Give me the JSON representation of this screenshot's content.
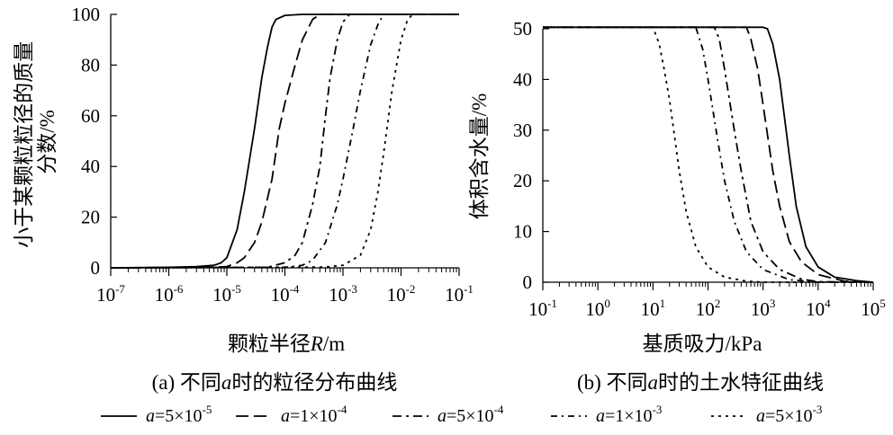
{
  "legend_prefix": "a",
  "legend_times": "×",
  "chart_data": [
    {
      "type": "line",
      "panel": "a",
      "caption_pre": "(a) 不同",
      "caption_var": "a",
      "caption_post": "时的粒径分布曲线",
      "xlabel": "颗粒半径R/m",
      "xlabel_parts": [
        "颗粒半径",
        "R",
        "/m"
      ],
      "ylabel": "小于某颗粒粒径的质量分数/%",
      "ylabel_lines": [
        "小于某颗粒粒径的质量",
        "分数/%"
      ],
      "xscale": "log",
      "xlim": [
        1e-07,
        0.1
      ],
      "xticks": [
        {
          "value": 1e-07,
          "base": "10",
          "exp": "-7"
        },
        {
          "value": 1e-06,
          "base": "10",
          "exp": "-6"
        },
        {
          "value": 1e-05,
          "base": "10",
          "exp": "-5"
        },
        {
          "value": 0.0001,
          "base": "10",
          "exp": "-4"
        },
        {
          "value": 0.001,
          "base": "10",
          "exp": "-3"
        },
        {
          "value": 0.01,
          "base": "10",
          "exp": "-2"
        },
        {
          "value": 0.1,
          "base": "10",
          "exp": "-1"
        }
      ],
      "ylim": [
        0,
        100
      ],
      "yticks": [
        0,
        20,
        40,
        60,
        80,
        100
      ],
      "grid": false,
      "series": [
        {
          "name": "a=5×10⁻⁵",
          "label": {
            "base": "5",
            "exp": "-5"
          },
          "dash": "solid",
          "points": [
            [
              1e-07,
              0
            ],
            [
              1e-06,
              0.2
            ],
            [
              3e-06,
              0.5
            ],
            [
              6e-06,
              1
            ],
            [
              8e-06,
              2
            ],
            [
              1e-05,
              4
            ],
            [
              1.5e-05,
              15
            ],
            [
              2e-05,
              30
            ],
            [
              3e-05,
              55
            ],
            [
              4e-05,
              75
            ],
            [
              5e-05,
              87
            ],
            [
              6e-05,
              95
            ],
            [
              7e-05,
              98
            ],
            [
              0.0001,
              99.6
            ],
            [
              0.0002,
              100
            ],
            [
              0.1,
              100
            ]
          ]
        },
        {
          "name": "a=1×10⁻⁴",
          "label": {
            "base": "1",
            "exp": "-4"
          },
          "dash": "dash",
          "points": [
            [
              1e-07,
              0
            ],
            [
              5e-06,
              0.2
            ],
            [
              1e-05,
              0.5
            ],
            [
              1.5e-05,
              2
            ],
            [
              2e-05,
              4
            ],
            [
              3e-05,
              10
            ],
            [
              4e-05,
              18
            ],
            [
              6e-05,
              35
            ],
            [
              8e-05,
              55
            ],
            [
              0.0001,
              65
            ],
            [
              0.00015,
              80
            ],
            [
              0.0002,
              90
            ],
            [
              0.0003,
              98
            ],
            [
              0.0004,
              100
            ],
            [
              0.1,
              100
            ]
          ]
        },
        {
          "name": "a=5×10⁻⁴",
          "label": {
            "base": "5",
            "exp": "-4"
          },
          "dash": "dashdot",
          "points": [
            [
              1e-07,
              0
            ],
            [
              5e-05,
              0.2
            ],
            [
              0.0001,
              2
            ],
            [
              0.00015,
              5
            ],
            [
              0.0002,
              10
            ],
            [
              0.0003,
              25
            ],
            [
              0.0004,
              40
            ],
            [
              0.0005,
              60
            ],
            [
              0.0006,
              75
            ],
            [
              0.0008,
              90
            ],
            [
              0.001,
              97
            ],
            [
              0.0013,
              100
            ],
            [
              0.1,
              100
            ]
          ]
        },
        {
          "name": "a=1×10⁻³",
          "label": {
            "base": "1",
            "exp": "-3"
          },
          "dash": "dashdot2",
          "points": [
            [
              1e-07,
              0
            ],
            [
              0.0001,
              0.2
            ],
            [
              0.0002,
              1
            ],
            [
              0.0003,
              3
            ],
            [
              0.0005,
              10
            ],
            [
              0.0008,
              25
            ],
            [
              0.001,
              35
            ],
            [
              0.0015,
              55
            ],
            [
              0.002,
              70
            ],
            [
              0.003,
              88
            ],
            [
              0.004,
              96
            ],
            [
              0.005,
              100
            ],
            [
              0.1,
              100
            ]
          ]
        },
        {
          "name": "a=5×10⁻³",
          "label": {
            "base": "5",
            "exp": "-3"
          },
          "dash": "dot",
          "points": [
            [
              1e-07,
              0
            ],
            [
              0.0005,
              0.3
            ],
            [
              0.001,
              1
            ],
            [
              0.002,
              5
            ],
            [
              0.003,
              15
            ],
            [
              0.004,
              30
            ],
            [
              0.005,
              45
            ],
            [
              0.007,
              70
            ],
            [
              0.01,
              90
            ],
            [
              0.013,
              98
            ],
            [
              0.016,
              100
            ],
            [
              0.1,
              100
            ]
          ]
        }
      ]
    },
    {
      "type": "line",
      "panel": "b",
      "caption_pre": "(b) 不同",
      "caption_var": "a",
      "caption_post": "时的土水特征曲线",
      "xlabel": "基质吸力/kPa",
      "ylabel": "体积含水量/%",
      "xscale": "log",
      "xlim": [
        0.1,
        100000
      ],
      "xticks": [
        {
          "value": 0.1,
          "base": "10",
          "exp": "-1"
        },
        {
          "value": 1,
          "base": "10",
          "exp": "0"
        },
        {
          "value": 10,
          "base": "10",
          "exp": "1"
        },
        {
          "value": 100,
          "base": "10",
          "exp": "2"
        },
        {
          "value": 1000,
          "base": "10",
          "exp": "3"
        },
        {
          "value": 10000,
          "base": "10",
          "exp": "4"
        },
        {
          "value": 100000,
          "base": "10",
          "exp": "5"
        }
      ],
      "ylim": [
        0,
        50
      ],
      "yticks": [
        0,
        10,
        20,
        30,
        40,
        50
      ],
      "grid": false,
      "series": [
        {
          "name": "a=5×10⁻⁵",
          "dash": "solid",
          "points": [
            [
              0.1,
              50.3
            ],
            [
              1000,
              50.3
            ],
            [
              1200,
              50
            ],
            [
              1500,
              47
            ],
            [
              2000,
              40
            ],
            [
              3000,
              25
            ],
            [
              4000,
              15
            ],
            [
              6000,
              7
            ],
            [
              10000.0,
              3
            ],
            [
              20000.0,
              1
            ],
            [
              50000.0,
              0.3
            ],
            [
              100000.0,
              0
            ]
          ]
        },
        {
          "name": "a=1×10⁻⁴",
          "dash": "dash",
          "points": [
            [
              0.1,
              50.3
            ],
            [
              500,
              50.3
            ],
            [
              600,
              48
            ],
            [
              800,
              42
            ],
            [
              1000,
              35
            ],
            [
              1500,
              22
            ],
            [
              2000,
              15
            ],
            [
              3000,
              8
            ],
            [
              5000,
              4
            ],
            [
              10000.0,
              1.5
            ],
            [
              30000.0,
              0.2
            ],
            [
              100000.0,
              0
            ]
          ]
        },
        {
          "name": "a=5×10⁻⁴",
          "dash": "dashdot",
          "points": [
            [
              0.1,
              50.3
            ],
            [
              130,
              50.3
            ],
            [
              160,
              48
            ],
            [
              200,
              42
            ],
            [
              300,
              30
            ],
            [
              400,
              22
            ],
            [
              600,
              12
            ],
            [
              1000,
              6
            ],
            [
              2000,
              2.5
            ],
            [
              5000,
              0.6
            ],
            [
              10000.0,
              0.1
            ],
            [
              100000.0,
              0
            ]
          ]
        },
        {
          "name": "a=1×10⁻³",
          "dash": "dashdot2",
          "points": [
            [
              0.1,
              50.3
            ],
            [
              60,
              50.3
            ],
            [
              80,
              46
            ],
            [
              100,
              40
            ],
            [
              150,
              28
            ],
            [
              200,
              20
            ],
            [
              300,
              12
            ],
            [
              500,
              6
            ],
            [
              1000,
              2.5
            ],
            [
              3000,
              0.5
            ],
            [
              10000.0,
              0
            ],
            [
              100000.0,
              0
            ]
          ]
        },
        {
          "name": "a=5×10⁻³",
          "dash": "dot",
          "points": [
            [
              0.1,
              50.3
            ],
            [
              10,
              50.3
            ],
            [
              13,
              47
            ],
            [
              16,
              42
            ],
            [
              20,
              36
            ],
            [
              30,
              22
            ],
            [
              40,
              14
            ],
            [
              60,
              7
            ],
            [
              100,
              3
            ],
            [
              200,
              1
            ],
            [
              500,
              0.2
            ],
            [
              1000,
              0
            ],
            [
              100000.0,
              0
            ]
          ]
        }
      ]
    }
  ]
}
